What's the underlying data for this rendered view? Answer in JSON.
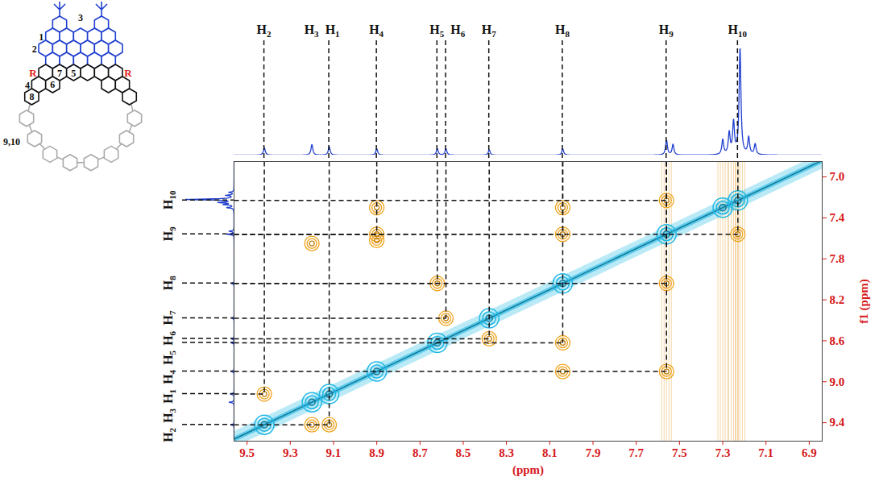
{
  "chart_data": {
    "type": "nmr_2d",
    "x_label": "(ppm)",
    "y_label": "f1 (ppm)",
    "xlim": [
      6.84,
      9.56
    ],
    "ylim": [
      6.85,
      9.58
    ],
    "xticks": [
      9.5,
      9.3,
      9.1,
      8.9,
      8.7,
      8.5,
      8.3,
      8.1,
      7.9,
      7.7,
      7.5,
      7.3,
      7.1,
      6.9
    ],
    "yticks": [
      {
        "value": 7.0,
        "label": "7.0"
      },
      {
        "value": 7.4,
        "label": "7.4"
      },
      {
        "value": 7.8,
        "label": "7.8"
      },
      {
        "value": 8.2,
        "label": "8.2"
      },
      {
        "value": 8.6,
        "label": "8.6"
      },
      {
        "value": 9.0,
        "label": "9.0"
      },
      {
        "value": 9.4,
        "label": "9.4"
      }
    ],
    "protons": {
      "labels": [
        "H2",
        "H3",
        "H1",
        "H4",
        "H5",
        "H6",
        "H7",
        "H8",
        "H9",
        "H10"
      ],
      "shifts": [
        9.42,
        9.2,
        9.12,
        8.9,
        8.62,
        8.58,
        8.38,
        8.04,
        7.56,
        7.23
      ]
    },
    "projection": {
      "color": "#1f3fcf",
      "x": [
        9.42,
        9.2,
        9.12,
        8.9,
        8.62,
        8.58,
        8.38,
        8.04,
        7.56,
        7.53,
        7.3,
        7.27,
        7.25,
        7.22,
        7.18,
        7.15
      ],
      "heights": [
        0.07,
        0.1,
        0.08,
        0.06,
        0.06,
        0.06,
        0.05,
        0.06,
        0.14,
        0.1,
        0.14,
        0.2,
        0.3,
        1.0,
        0.16,
        0.1
      ]
    },
    "diagonal_peaks": {
      "color": "#1fb8e6",
      "values": [
        9.42,
        9.2,
        9.12,
        8.9,
        8.62,
        8.38,
        8.04,
        7.56,
        7.3,
        7.23
      ]
    },
    "cross_peaks": {
      "color": "#f0a21a",
      "assigned": [
        {
          "x": 9.42,
          "y": 9.12
        },
        {
          "x": 9.12,
          "y": 9.42
        },
        {
          "x": 8.9,
          "y": 7.56
        },
        {
          "x": 7.56,
          "y": 8.9
        },
        {
          "x": 8.04,
          "y": 7.56
        },
        {
          "x": 7.56,
          "y": 8.04
        },
        {
          "x": 8.04,
          "y": 8.62
        },
        {
          "x": 8.62,
          "y": 8.04
        },
        {
          "x": 8.58,
          "y": 8.38
        },
        {
          "x": 8.38,
          "y": 8.58
        },
        {
          "x": 7.56,
          "y": 7.23
        },
        {
          "x": 7.23,
          "y": 7.56
        }
      ],
      "other": [
        {
          "x": 8.9,
          "y": 7.3
        },
        {
          "x": 9.2,
          "y": 7.65
        },
        {
          "x": 9.2,
          "y": 9.42
        },
        {
          "x": 8.04,
          "y": 7.3
        },
        {
          "x": 8.04,
          "y": 8.9
        },
        {
          "x": 8.9,
          "y": 7.62
        }
      ]
    },
    "t1_noise": {
      "color": "#e8a33a",
      "x": [
        7.56,
        7.3,
        7.25,
        7.22
      ]
    }
  },
  "structure": {
    "labels": [
      "1",
      "2",
      "3",
      "4",
      "5",
      "6",
      "7",
      "8",
      "9,10"
    ],
    "substituent": "R"
  }
}
